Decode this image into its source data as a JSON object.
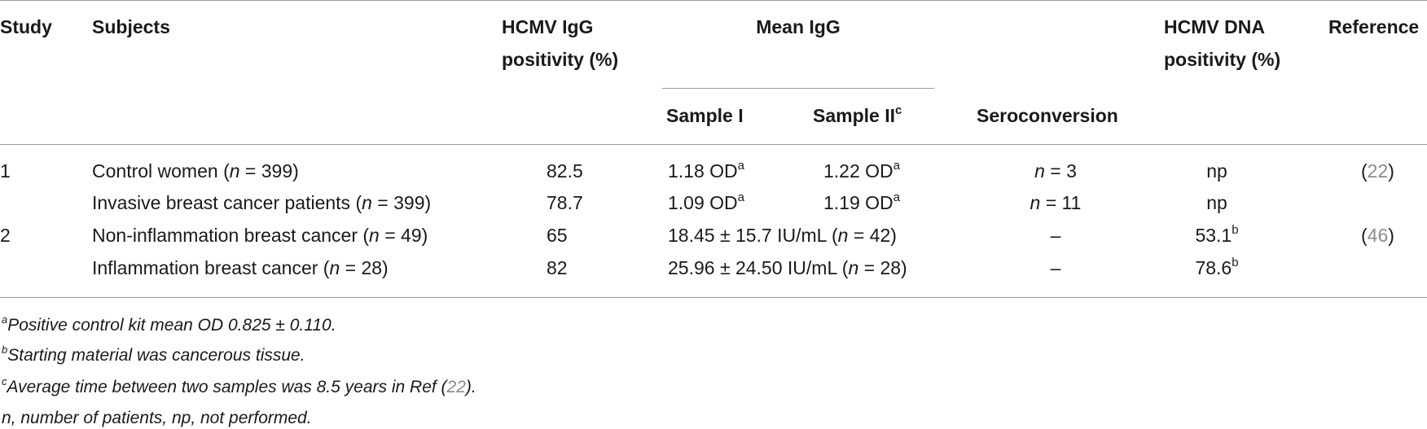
{
  "header": {
    "study": "Study",
    "subjects": "Subjects",
    "igg_pos_line1": "HCMV IgG",
    "igg_pos_line2": "positivity (%)",
    "mean_igg": "Mean IgG",
    "sample1": "Sample I",
    "sample2": "Sample II",
    "sample2_sup": "c",
    "seroconversion": "Seroconversion",
    "dna_pos_line1": "HCMV DNA",
    "dna_pos_line2": "positivity (%)",
    "reference": "Reference"
  },
  "rows": [
    {
      "study": "1",
      "subject_text": "Control women (",
      "n_label": "n",
      "n_rest": " = 399)",
      "igg": "82.5",
      "s1": "1.18 OD",
      "s1_sup": "a",
      "s2": "1.22 OD",
      "s2_sup": "a",
      "sero_n": "n",
      "sero_val": " = 3",
      "dna": "np",
      "ref_open": "(",
      "ref_num": "22",
      "ref_close": ")"
    },
    {
      "study": "",
      "subject_text": "Invasive breast cancer patients (",
      "n_label": "n",
      "n_rest": " = 399)",
      "igg": "78.7",
      "s1": "1.09 OD",
      "s1_sup": "a",
      "s2": "1.19 OD",
      "s2_sup": "a",
      "sero_n": "n",
      "sero_val": " = 11",
      "dna": "np"
    },
    {
      "study": "2",
      "subject_text": "Non-inflammation breast cancer (",
      "n_label": "n",
      "n_rest": " = 49)",
      "igg": "65",
      "mean_span_pre": "18.45 ± 15.7 IU/mL (",
      "mean_span_n": "n",
      "mean_span_post": " = 42)",
      "sero": "–",
      "dna": "53.1",
      "dna_sup": "b",
      "ref_open": "(",
      "ref_num": "46",
      "ref_close": ")"
    },
    {
      "study": "",
      "subject_text": "Inflammation breast cancer (",
      "n_label": "n",
      "n_rest": " = 28)",
      "igg": "82",
      "mean_span_pre": "25.96 ± 24.50 IU/mL (",
      "mean_span_n": "n",
      "mean_span_post": " = 28)",
      "sero": "–",
      "dna": "78.6",
      "dna_sup": "b"
    }
  ],
  "footnotes": {
    "a_mark": "a",
    "a_text": "Positive control kit mean OD 0.825 ± 0.110.",
    "b_mark": "b",
    "b_text": "Starting material was cancerous tissue.",
    "c_mark": "c",
    "c_text_pre": "Average time between two samples was 8.5 years in Ref (",
    "c_ref": "22",
    "c_text_post": ").",
    "abbrev": "n, number of patients, np, not performed."
  }
}
